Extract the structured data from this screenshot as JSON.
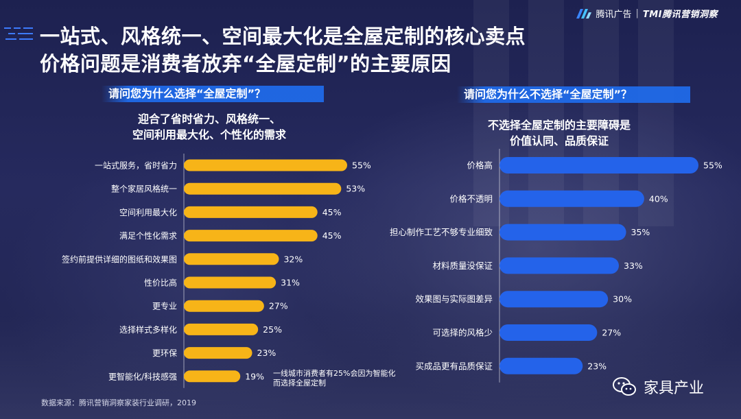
{
  "brand": {
    "name": "腾讯广告",
    "separator": "|",
    "partner": "TMI腾讯营销洞察"
  },
  "title": {
    "line1": "一站式、风格统一、空间最大化是全屋定制的核心卖点",
    "line2": "价格问题是消费者放弃“全屋定制”的主要原因"
  },
  "left": {
    "question": "请问您为什么选择“全屋定制”？",
    "subtitle_line1": "迎合了省时省力、风格统一、",
    "subtitle_line2": "空间利用最大化、个性化的需求",
    "note": "一线城市消费者有25%会因为智能化而选择全屋定制"
  },
  "right": {
    "question": "请问您为什么不选择“全屋定制”？",
    "subtitle_line1": "不选择全屋定制的主要障碍是",
    "subtitle_line2": "价值认同、品质保证"
  },
  "source": "数据来源：腾讯营销洞察家装行业调研，2019",
  "watermark": {
    "icon": "wechat-icon",
    "text": "家具产业"
  },
  "colors": {
    "left_bar": "#f7b418",
    "right_bar": "#2463ea",
    "text": "#ffffff"
  },
  "chart_data": [
    {
      "type": "bar",
      "orientation": "horizontal",
      "categories": [
        "一站式服务，省时省力",
        "整个家居风格统一",
        "空间利用最大化",
        "满足个性化需求",
        "签约前提供详细的图纸和效果图",
        "性价比高",
        "更专业",
        "选择样式多样化",
        "更环保",
        "更智能化/科技感强"
      ],
      "values": [
        55,
        53,
        45,
        45,
        32,
        31,
        27,
        25,
        23,
        19
      ],
      "unit": "%",
      "labels": [
        "55%",
        "53%",
        "45%",
        "45%",
        "32%",
        "31%",
        "27%",
        "25%",
        "23%",
        "19%"
      ]
    },
    {
      "type": "bar",
      "orientation": "horizontal",
      "categories": [
        "价格高",
        "价格不透明",
        "担心制作工艺不够专业细致",
        "材料质量没保证",
        "效果图与实际图差异",
        "可选择的风格少",
        "买成品更有品质保证"
      ],
      "values": [
        55,
        40,
        35,
        33,
        30,
        27,
        23
      ],
      "unit": "%",
      "labels": [
        "55%",
        "40%",
        "35%",
        "33%",
        "30%",
        "27%",
        "23%"
      ]
    }
  ]
}
